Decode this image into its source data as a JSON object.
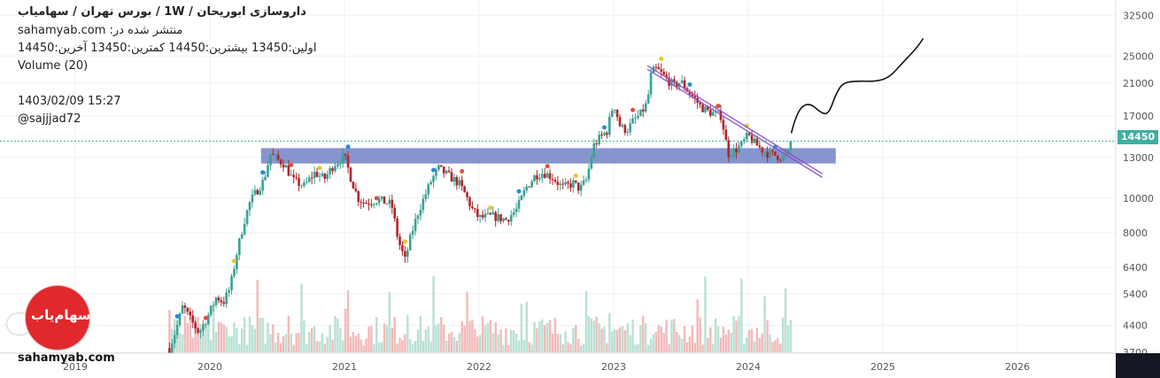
{
  "header": {
    "title": "داروسازی ابوریحان / 1W / بورس تهران / سهامیاب",
    "publisher": "منتشر شده در: sahamyab.com",
    "ohlc": "اولین:13450  بیشترین:14450  کمترین:13450  آخرین:14450",
    "volume_label": "Volume (20)",
    "date": "1403/02/09 15:27",
    "author": "@sajjjad72"
  },
  "watermark": "sahamyab.com",
  "logo_text": "سهام‌یاب",
  "last_price_label": "14450",
  "colors": {
    "up": "#3aa191",
    "down": "#b0262b",
    "volume_up": "#b9e0d2",
    "volume_down": "#f3b9b9",
    "zone": "#7183c6",
    "trendline": "#8a4fc8",
    "price_line": "#3db0a0",
    "marker_blue": "#1f8de0",
    "marker_yellow": "#f0c030",
    "marker_red": "#e0503a",
    "logo": "#e0282d"
  },
  "chart_data": {
    "type": "candlestick",
    "interval": "1W",
    "y_scale": "log",
    "ylim": [
      3700,
      33500
    ],
    "y_ticks": [
      "32500",
      "25000",
      "21000",
      "17000",
      "13000",
      "10000",
      "8000",
      "6400",
      "5400",
      "4400",
      "3700"
    ],
    "x_ticks": [
      "2019",
      "2020",
      "2021",
      "2022",
      "2023",
      "2024",
      "2025",
      "2026"
    ],
    "x_start_year": 2018.4,
    "x_end_year": 2026.8,
    "last_price": 14450,
    "close_path": [
      [
        2019.7,
        3800
      ],
      [
        2019.75,
        4300
      ],
      [
        2019.8,
        5000
      ],
      [
        2019.85,
        4600
      ],
      [
        2019.92,
        4200
      ],
      [
        2020.0,
        4800
      ],
      [
        2020.05,
        5300
      ],
      [
        2020.1,
        5100
      ],
      [
        2020.15,
        5600
      ],
      [
        2020.2,
        7000
      ],
      [
        2020.25,
        8500
      ],
      [
        2020.3,
        9800
      ],
      [
        2020.35,
        10500
      ],
      [
        2020.4,
        11200
      ],
      [
        2020.45,
        13300
      ],
      [
        2020.5,
        12800
      ],
      [
        2020.55,
        12500
      ],
      [
        2020.62,
        11200
      ],
      [
        2020.7,
        10800
      ],
      [
        2020.78,
        11800
      ],
      [
        2020.85,
        11300
      ],
      [
        2020.92,
        12400
      ],
      [
        2021.0,
        13100
      ],
      [
        2021.05,
        11300
      ],
      [
        2021.1,
        10000
      ],
      [
        2021.15,
        9700
      ],
      [
        2021.25,
        9900
      ],
      [
        2021.35,
        9600
      ],
      [
        2021.4,
        7600
      ],
      [
        2021.45,
        6700
      ],
      [
        2021.5,
        8000
      ],
      [
        2021.55,
        9200
      ],
      [
        2021.6,
        10200
      ],
      [
        2021.65,
        11300
      ],
      [
        2021.7,
        12100
      ],
      [
        2021.78,
        11500
      ],
      [
        2021.85,
        11000
      ],
      [
        2021.9,
        10200
      ],
      [
        2021.95,
        9300
      ],
      [
        2022.0,
        8800
      ],
      [
        2022.1,
        8900
      ],
      [
        2022.2,
        8700
      ],
      [
        2022.28,
        9300
      ],
      [
        2022.35,
        10700
      ],
      [
        2022.42,
        11600
      ],
      [
        2022.48,
        11800
      ],
      [
        2022.55,
        11400
      ],
      [
        2022.62,
        10700
      ],
      [
        2022.7,
        11000
      ],
      [
        2022.75,
        10600
      ],
      [
        2022.8,
        11300
      ],
      [
        2022.85,
        14000
      ],
      [
        2022.9,
        14800
      ],
      [
        2022.95,
        15400
      ],
      [
        2023.0,
        18500
      ],
      [
        2023.05,
        15800
      ],
      [
        2023.1,
        15500
      ],
      [
        2023.15,
        16500
      ],
      [
        2023.2,
        17200
      ],
      [
        2023.25,
        18500
      ],
      [
        2023.28,
        22500
      ],
      [
        2023.32,
        23000
      ],
      [
        2023.38,
        21800
      ],
      [
        2023.45,
        20600
      ],
      [
        2023.5,
        21200
      ],
      [
        2023.55,
        20000
      ],
      [
        2023.6,
        19000
      ],
      [
        2023.65,
        18000
      ],
      [
        2023.7,
        17500
      ],
      [
        2023.75,
        17200
      ],
      [
        2023.8,
        17000
      ],
      [
        2023.85,
        13300
      ],
      [
        2023.9,
        13600
      ],
      [
        2023.95,
        14100
      ],
      [
        2024.0,
        15000
      ],
      [
        2024.05,
        14200
      ],
      [
        2024.1,
        13700
      ],
      [
        2024.15,
        13300
      ],
      [
        2024.2,
        13200
      ],
      [
        2024.25,
        13000
      ],
      [
        2024.3,
        13400
      ],
      [
        2024.33,
        14450
      ]
    ],
    "support_zone": {
      "x_from": 2020.38,
      "x_to": 2024.65,
      "y_from": 12500,
      "y_to": 13800
    },
    "trendline": {
      "x_from": 2023.25,
      "y_from": 23500,
      "x_to": 2024.55,
      "y_to": 11700
    },
    "projection": [
      [
        2024.32,
        15200
      ],
      [
        2024.36,
        17500
      ],
      [
        2024.45,
        18600
      ],
      [
        2024.55,
        17200
      ],
      [
        2024.6,
        17300
      ],
      [
        2024.65,
        19500
      ],
      [
        2024.7,
        21000
      ],
      [
        2024.8,
        21300
      ],
      [
        2024.95,
        21200
      ],
      [
        2025.05,
        21800
      ],
      [
        2025.15,
        24000
      ],
      [
        2025.25,
        26300
      ],
      [
        2025.3,
        28000
      ]
    ]
  }
}
